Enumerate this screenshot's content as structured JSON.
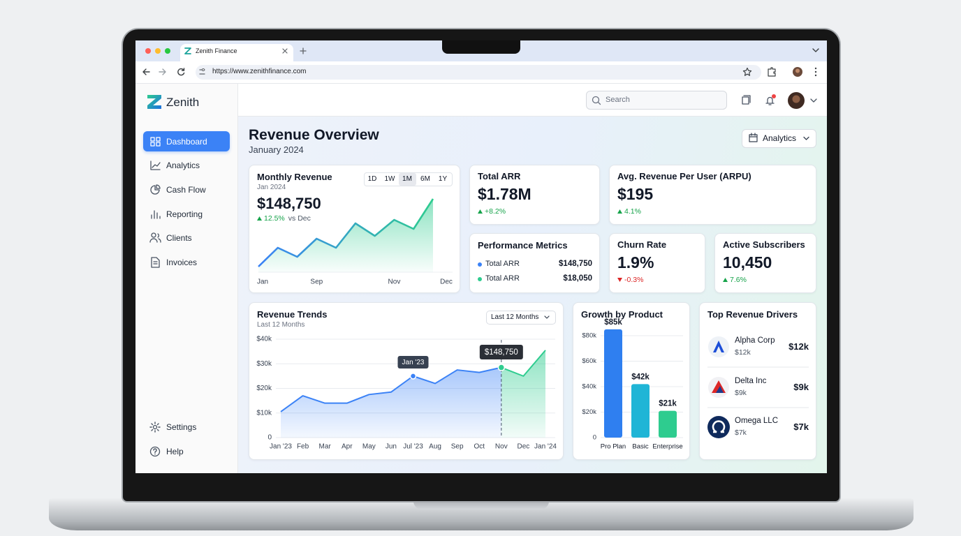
{
  "browser": {
    "tab_title": "Zenith Finance",
    "url": "https://www.zenithfinance.com"
  },
  "sidebar": {
    "brand": "Zenith",
    "nav": [
      "Dashboard",
      "Analytics",
      "Cash Flow",
      "Reporting",
      "Clients",
      "Invoices"
    ],
    "footer_nav": [
      "Settings",
      "Help"
    ]
  },
  "topbar": {
    "search_placeholder": "Search"
  },
  "header": {
    "title": "Revenue Overview",
    "subtitle": "January 2024",
    "view_menu": "Analytics"
  },
  "monthly_revenue": {
    "title": "Monthly Revenue",
    "period": "Jan 2024",
    "value": "$148,750",
    "change": "12.5%",
    "change_note": "vs Dec",
    "ranges": [
      "1D",
      "1W",
      "1M",
      "6M",
      "1Y"
    ]
  },
  "kpis": [
    {
      "title": "Total ARR",
      "value": "$1.78M",
      "change": "+8.2%"
    },
    {
      "title": "Avg. Revenue Per User (ARPU)",
      "value": "$195",
      "change": "4.1%"
    },
    {
      "title": "Churn Rate",
      "value": "1.9%",
      "change": "-0.3%"
    },
    {
      "title": "Active Subscribers",
      "value": "10,450",
      "change": "7.6%"
    }
  ],
  "performance": {
    "title": "Performance Metrics",
    "rows": [
      {
        "label": "Total ARR",
        "value": "$148,750"
      },
      {
        "label": "Total ARR",
        "value": "$18,050"
      }
    ]
  },
  "drivers": {
    "title": "Top Revenue Drivers",
    "items": [
      {
        "name": "Alpha Corp",
        "sub": "$12k",
        "amount": "$12k"
      },
      {
        "name": "Delta Inc",
        "sub": "$9k",
        "amount": "$9k"
      },
      {
        "name": "Omega LLC",
        "sub": "$7k",
        "amount": "$7k"
      }
    ]
  },
  "chart_data": [
    {
      "type": "line",
      "categories": [
        "Jan",
        null,
        null,
        "Sep",
        null,
        null,
        null,
        "Nov",
        null,
        "Dec"
      ],
      "values": [
        8,
        35,
        22,
        48,
        35,
        70,
        52,
        75,
        62,
        105
      ],
      "colors": [
        "#3b82f6",
        "#2ecc8f"
      ]
    },
    {
      "type": "area",
      "title": "Revenue Trends",
      "subtitle": "Last 12 Months",
      "filter": "Last 12 Months",
      "categories": [
        "Jan '23",
        "Feb",
        "Mar",
        "Apr",
        "May",
        "Jun",
        "Jul '23",
        "Aug",
        "Sep",
        "Oct",
        "Nov",
        "Dec",
        "Jan '24"
      ],
      "values": [
        10500,
        17000,
        14000,
        14000,
        17500,
        18500,
        25000,
        22000,
        27500,
        26500,
        28500,
        25000,
        35500
      ],
      "color": "#3b82f6",
      "highlight_color": "#2ecc8f",
      "ylim": [
        0,
        40000
      ],
      "yticks": [
        0,
        {
          "value": 10000,
          "label": "$10k"
        },
        {
          "value": 20000,
          "label": "$20k"
        },
        {
          "value": 30000,
          "label": "$30k"
        },
        {
          "value": 40000,
          "label": "$40k"
        }
      ],
      "grid": true,
      "annotations": [
        "Jan '23",
        "$148,750"
      ]
    },
    {
      "type": "bar",
      "title": "Growth by Product",
      "categories": [
        "Pro Plan",
        "Basic",
        "Enterprise"
      ],
      "values": [
        85000,
        42000,
        21000
      ],
      "value_labels": [
        "$85k",
        "$42k",
        "$21k"
      ],
      "colors": [
        "#2f7ff0",
        "#1fb5d6",
        "#2ecc8f"
      ],
      "ylim": [
        0,
        90000
      ],
      "yticks": [
        0,
        {
          "value": 20000,
          "label": "$20k"
        },
        {
          "value": 40000,
          "label": "$40k"
        },
        {
          "value": 60000,
          "label": "$60k"
        },
        {
          "value": 80000,
          "label": "$80k"
        }
      ],
      "grid": true
    }
  ]
}
